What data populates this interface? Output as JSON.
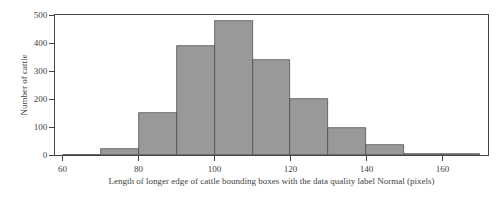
{
  "chart_data": {
    "type": "histogram",
    "bins": [
      60,
      70,
      80,
      90,
      100,
      110,
      120,
      130,
      140,
      150,
      160,
      170
    ],
    "values": [
      0,
      20,
      150,
      390,
      480,
      340,
      200,
      95,
      35,
      5,
      2
    ],
    "color": "#999999",
    "xlabel": "Length of longer edge of cattle bounding boxes with the data quality label Normal (pixels)",
    "ylabel": "Number of cattle",
    "xlim": [
      58,
      172
    ],
    "ylim": [
      0,
      500
    ],
    "xticks": [
      60,
      80,
      100,
      120,
      140,
      160
    ],
    "yticks": [
      0,
      100,
      200,
      300,
      400,
      500
    ],
    "grid": false
  }
}
